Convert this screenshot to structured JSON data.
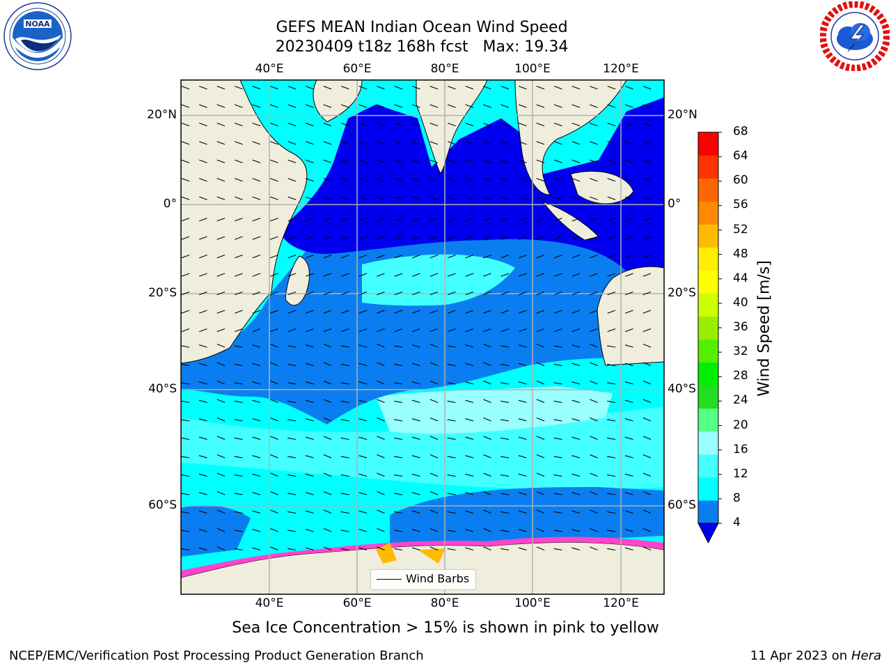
{
  "title": {
    "line1": "GEFS MEAN Indian Ocean Wind Speed",
    "line2": "20230409 t18z 168h fcst   Max: 19.34"
  },
  "map": {
    "lon_ticks_top": [
      "40°E",
      "60°E",
      "80°E",
      "100°E",
      "120°E"
    ],
    "lon_ticks_bottom": [
      "40°E",
      "60°E",
      "80°E",
      "100°E",
      "120°E"
    ],
    "lat_ticks_left": [
      "20°N",
      "0°",
      "20°S",
      "40°S",
      "60°S"
    ],
    "lat_ticks_right": [
      "20°N",
      "0°",
      "20°S",
      "40°S",
      "60°S"
    ],
    "legend_label": "Wind Barbs",
    "colors": {
      "land": "#efeedd",
      "ocean_very_low": "#0000ee",
      "ocean_low": "#0a7ef0",
      "ocean_mid": "#00ffff",
      "ocean_high": "#44ffff",
      "ocean_higher": "#99ffff",
      "sea_ice": "#ff44cc"
    }
  },
  "colorbar": {
    "label": "Wind Speed [m/s]",
    "ticks": [
      "68",
      "64",
      "60",
      "56",
      "52",
      "48",
      "44",
      "40",
      "36",
      "32",
      "28",
      "24",
      "20",
      "16",
      "12",
      "8",
      "4"
    ],
    "colors": [
      "#0a7ef0",
      "#00ffff",
      "#44ffff",
      "#99ffff",
      "#55ff88",
      "#22dd22",
      "#00ee00",
      "#55ee00",
      "#99ee00",
      "#ccff00",
      "#ffff00",
      "#ffee00",
      "#ffbb00",
      "#ff8800",
      "#ff6600",
      "#ff3300",
      "#ff0000"
    ],
    "extend_color": "#0000ee"
  },
  "sea_ice_note": "Sea Ice Concentration > 15% is shown in pink to yellow",
  "footer": {
    "left": "NCEP/EMC/Verification Post Processing Product Generation Branch",
    "date": "11 Apr 2023 on ",
    "host": "Hera"
  },
  "logos": {
    "left_icon": "noaa-logo",
    "right_icon": "nws-logo"
  }
}
